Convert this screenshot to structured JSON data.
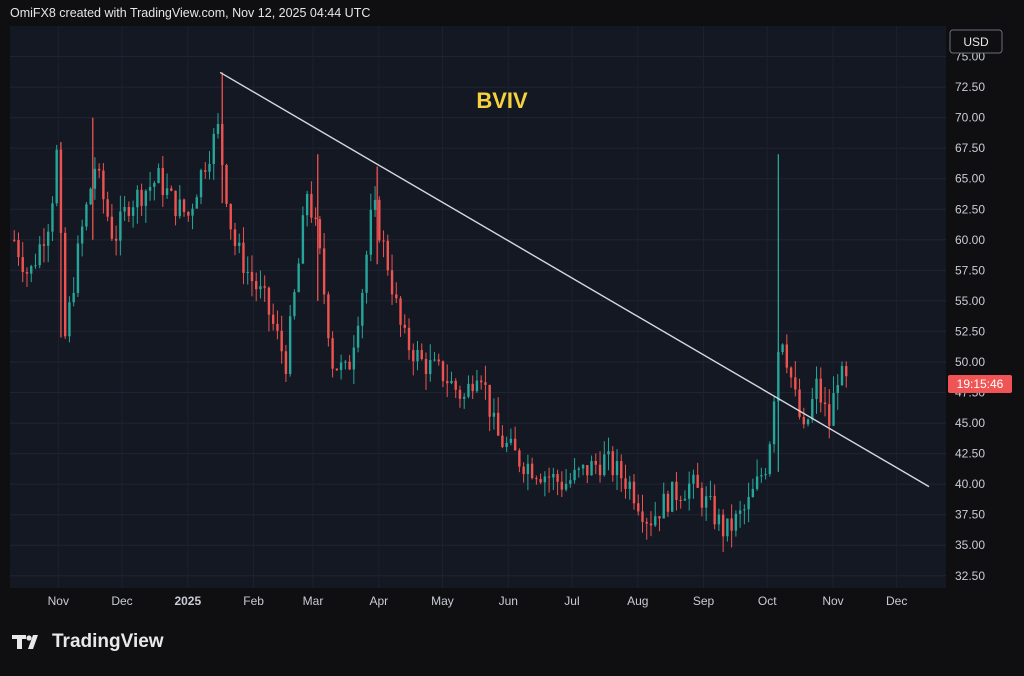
{
  "header": {
    "credit": "OmiFX8 created with TradingView.com, Nov 12, 2025 04:44 UTC"
  },
  "footer": {
    "brand": "TradingView",
    "logo_icon": "tradingview-logo-icon"
  },
  "colors": {
    "background": "#0f0f12",
    "plot_bg": "#141823",
    "up": "#26a69a",
    "down": "#ef5350",
    "title": "#f5d13d",
    "trendline": "#d6d8de",
    "price_label": "#f05454"
  },
  "chart_data": {
    "type": "candlestick",
    "title": "BVIV",
    "currency": "USD",
    "x_axis_labels": [
      "Nov",
      "Dec",
      "2025",
      "Feb",
      "Mar",
      "Apr",
      "May",
      "Jun",
      "Jul",
      "Aug",
      "Sep",
      "Oct",
      "Nov",
      "Dec"
    ],
    "y_ticks": [
      "75.00",
      "72.50",
      "70.00",
      "67.50",
      "65.00",
      "62.50",
      "60.00",
      "57.50",
      "55.00",
      "52.50",
      "50.00",
      "47.50",
      "45.00",
      "42.50",
      "40.00",
      "37.50",
      "35.00",
      "32.50"
    ],
    "ylim": [
      31.5,
      77.5
    ],
    "last_value": 48.2,
    "price_label": "19:15:46",
    "trendline": {
      "start": {
        "date": "2025-01-20",
        "value": 73.7
      },
      "end": {
        "date": "2025-12-20",
        "value": 39.8
      }
    },
    "anchors": [
      [
        "2024-10-15",
        60
      ],
      [
        "2024-10-22",
        57
      ],
      [
        "2024-11-01",
        62
      ],
      [
        "2024-11-04",
        67
      ],
      [
        "2024-11-08",
        52
      ],
      [
        "2024-11-15",
        60
      ],
      [
        "2024-11-22",
        66
      ],
      [
        "2024-12-01",
        60
      ],
      [
        "2024-12-08",
        63
      ],
      [
        "2024-12-15",
        64
      ],
      [
        "2024-12-22",
        65
      ],
      [
        "2024-12-29",
        63
      ],
      [
        "2025-01-05",
        62
      ],
      [
        "2025-01-12",
        66
      ],
      [
        "2025-01-19",
        69
      ],
      [
        "2025-01-26",
        60
      ],
      [
        "2025-02-03",
        57
      ],
      [
        "2025-02-10",
        55
      ],
      [
        "2025-02-20",
        50
      ],
      [
        "2025-02-26",
        58
      ],
      [
        "2025-03-02",
        64
      ],
      [
        "2025-03-07",
        60
      ],
      [
        "2025-03-14",
        50
      ],
      [
        "2025-03-21",
        49
      ],
      [
        "2025-03-28",
        56
      ],
      [
        "2025-04-02",
        63
      ],
      [
        "2025-04-09",
        58
      ],
      [
        "2025-04-16",
        52
      ],
      [
        "2025-04-25",
        50
      ],
      [
        "2025-05-05",
        49
      ],
      [
        "2025-05-15",
        47
      ],
      [
        "2025-05-22",
        50
      ],
      [
        "2025-05-30",
        44
      ],
      [
        "2025-06-10",
        42
      ],
      [
        "2025-06-20",
        41
      ],
      [
        "2025-07-01",
        40
      ],
      [
        "2025-07-10",
        41
      ],
      [
        "2025-07-20",
        42
      ],
      [
        "2025-08-01",
        40
      ],
      [
        "2025-08-10",
        37
      ],
      [
        "2025-08-20",
        39
      ],
      [
        "2025-08-30",
        40
      ],
      [
        "2025-09-08",
        38
      ],
      [
        "2025-09-15",
        36
      ],
      [
        "2025-09-25",
        38
      ],
      [
        "2025-10-05",
        42
      ],
      [
        "2025-10-11",
        53
      ],
      [
        "2025-10-18",
        47
      ],
      [
        "2025-10-22",
        44
      ],
      [
        "2025-10-28",
        48
      ],
      [
        "2025-11-03",
        45
      ],
      [
        "2025-11-07",
        49
      ],
      [
        "2025-11-12",
        48
      ]
    ],
    "spikes": [
      [
        "2025-01-21",
        73.7,
        63
      ],
      [
        "2025-10-10",
        67,
        41
      ],
      [
        "2025-04-04",
        66,
        58
      ],
      [
        "2025-03-07",
        67,
        55
      ],
      [
        "2024-11-06",
        68,
        52
      ],
      [
        "2024-11-21",
        70,
        60
      ]
    ]
  }
}
